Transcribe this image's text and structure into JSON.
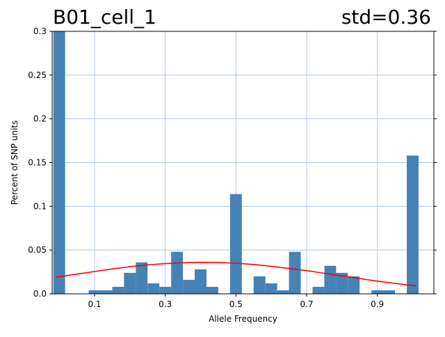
{
  "chart_data": {
    "type": "bar",
    "title_left": "B01_cell_1",
    "title_right": "std=0.36",
    "xlabel": "Allele Frequency",
    "ylabel": "Percent of SNP units",
    "xlim": [
      -0.02,
      1.06
    ],
    "ylim": [
      0,
      0.3
    ],
    "xticks": [
      0.1,
      0.3,
      0.5,
      0.7,
      0.9
    ],
    "xtick_labels": [
      "0.1",
      "0.3",
      "0.5",
      "0.7",
      "0.9"
    ],
    "yticks": [
      0.0,
      0.05,
      0.1,
      0.15,
      0.2,
      0.25,
      0.3
    ],
    "ytick_labels": [
      "0.0",
      "0.05",
      "0.1",
      "0.15",
      "0.2",
      "0.25",
      "0.3"
    ],
    "grid": true,
    "bar_color": "#4682b4",
    "curve_color": "#ff0000",
    "bin_width": 0.0333,
    "bins": [
      {
        "x": 0.0,
        "y": 0.3
      },
      {
        "x": 0.0333,
        "y": 0.0
      },
      {
        "x": 0.0667,
        "y": 0.0
      },
      {
        "x": 0.1,
        "y": 0.004
      },
      {
        "x": 0.1333,
        "y": 0.004
      },
      {
        "x": 0.1667,
        "y": 0.008
      },
      {
        "x": 0.2,
        "y": 0.024
      },
      {
        "x": 0.2333,
        "y": 0.036
      },
      {
        "x": 0.2667,
        "y": 0.012
      },
      {
        "x": 0.3,
        "y": 0.008
      },
      {
        "x": 0.3333,
        "y": 0.048
      },
      {
        "x": 0.3667,
        "y": 0.016
      },
      {
        "x": 0.4,
        "y": 0.028
      },
      {
        "x": 0.4333,
        "y": 0.008
      },
      {
        "x": 0.4667,
        "y": 0.0
      },
      {
        "x": 0.5,
        "y": 0.114
      },
      {
        "x": 0.5333,
        "y": 0.0
      },
      {
        "x": 0.5667,
        "y": 0.02
      },
      {
        "x": 0.6,
        "y": 0.012
      },
      {
        "x": 0.6333,
        "y": 0.004
      },
      {
        "x": 0.6667,
        "y": 0.048
      },
      {
        "x": 0.7,
        "y": 0.0
      },
      {
        "x": 0.7333,
        "y": 0.008
      },
      {
        "x": 0.7667,
        "y": 0.032
      },
      {
        "x": 0.8,
        "y": 0.024
      },
      {
        "x": 0.8333,
        "y": 0.02
      },
      {
        "x": 0.8667,
        "y": 0.0
      },
      {
        "x": 0.9,
        "y": 0.004
      },
      {
        "x": 0.9333,
        "y": 0.004
      },
      {
        "x": 0.9667,
        "y": 0.0
      },
      {
        "x": 1.0,
        "y": 0.158
      }
    ],
    "fit_curve": {
      "x": [
        -0.01,
        0.05,
        0.1,
        0.15,
        0.2,
        0.25,
        0.3,
        0.35,
        0.4,
        0.45,
        0.5,
        0.55,
        0.6,
        0.65,
        0.7,
        0.75,
        0.8,
        0.85,
        0.9,
        0.95,
        1.01
      ],
      "y": [
        0.019,
        0.0225,
        0.0255,
        0.0285,
        0.031,
        0.033,
        0.0345,
        0.0355,
        0.036,
        0.0357,
        0.035,
        0.0335,
        0.0315,
        0.029,
        0.0265,
        0.0235,
        0.0205,
        0.0175,
        0.0145,
        0.012,
        0.009
      ]
    }
  }
}
